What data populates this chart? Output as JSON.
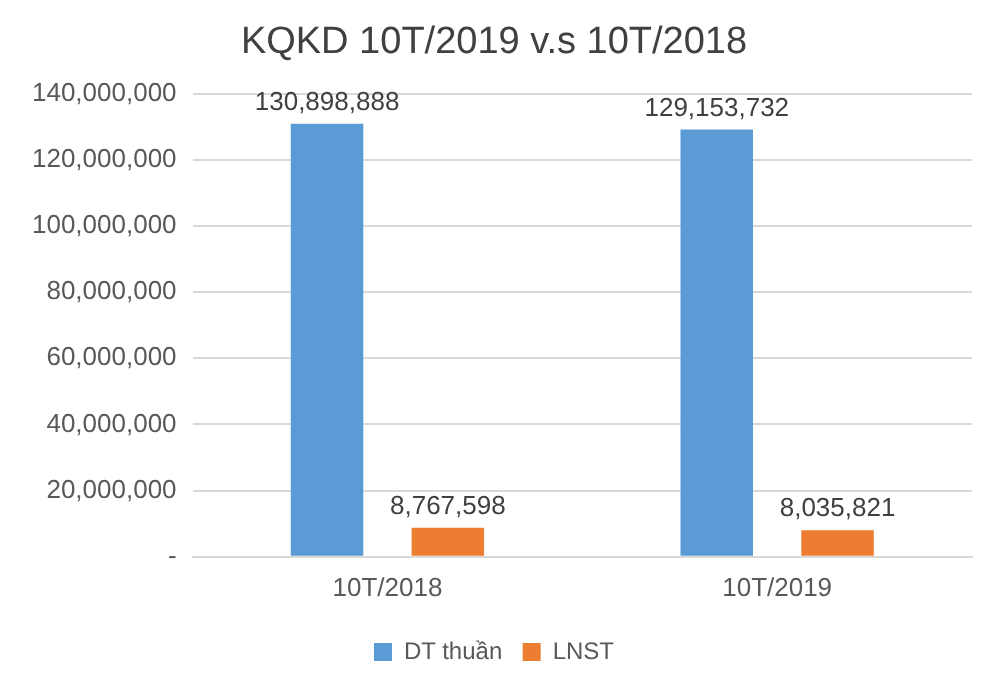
{
  "chart_data": {
    "type": "bar",
    "title": "KQKD 10T/2019 v.s 10T/2018",
    "categories": [
      "10T/2018",
      "10T/2019"
    ],
    "series": [
      {
        "name": "DT thuần",
        "color": "#5b9bd5",
        "values": [
          130898888,
          129153732
        ],
        "value_labels": [
          "130,898,888",
          "129,153,732"
        ]
      },
      {
        "name": "LNST",
        "color": "#ed7d31",
        "values": [
          8767598,
          8035821
        ],
        "value_labels": [
          "8,767,598",
          "8,035,821"
        ]
      }
    ],
    "ylim": [
      0,
      140000000
    ],
    "yticks": [
      {
        "value": 0,
        "label": "-"
      },
      {
        "value": 20000000,
        "label": "20,000,000"
      },
      {
        "value": 40000000,
        "label": "40,000,000"
      },
      {
        "value": 60000000,
        "label": "60,000,000"
      },
      {
        "value": 80000000,
        "label": "80,000,000"
      },
      {
        "value": 100000000,
        "label": "100,000,000"
      },
      {
        "value": 120000000,
        "label": "120,000,000"
      },
      {
        "value": 140000000,
        "label": "140,000,000"
      }
    ],
    "grid": "y",
    "legend": "bottom"
  }
}
